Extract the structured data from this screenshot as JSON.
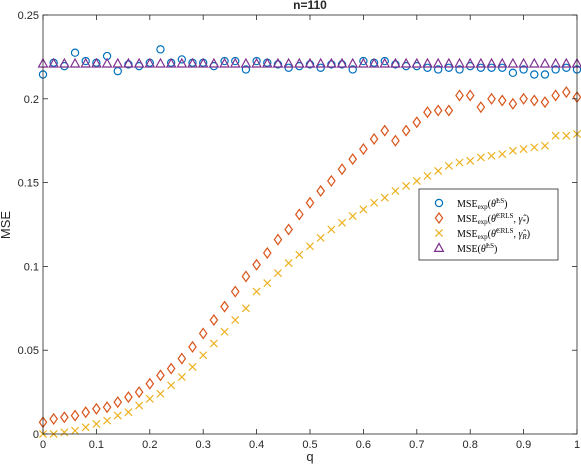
{
  "chart_data": {
    "type": "scatter",
    "title": "n=110",
    "xlabel": "q",
    "ylabel": "MSE",
    "xlim": [
      0,
      1
    ],
    "ylim": [
      0,
      0.25
    ],
    "xticks": [
      0,
      0.1,
      0.2,
      0.3,
      0.4,
      0.5,
      0.6,
      0.7,
      0.8,
      0.9,
      1
    ],
    "yticks": [
      0,
      0.05,
      0.1,
      0.15,
      0.2,
      0.25
    ],
    "xtick_labels": [
      "0",
      "0.1",
      "0.2",
      "0.3",
      "0.4",
      "0.5",
      "0.6",
      "0.7",
      "0.8",
      "0.9",
      "1"
    ],
    "ytick_labels": [
      "0",
      "0.05",
      "0.1",
      "0.15",
      "0.2",
      "0.25"
    ],
    "grid": false,
    "legend_position": "right-middle",
    "x": [
      0,
      0.02,
      0.04,
      0.06,
      0.08,
      0.1,
      0.12,
      0.14,
      0.16,
      0.18,
      0.2,
      0.22,
      0.24,
      0.26,
      0.28,
      0.3,
      0.32,
      0.34,
      0.36,
      0.38,
      0.4,
      0.42,
      0.44,
      0.46,
      0.48,
      0.5,
      0.52,
      0.54,
      0.56,
      0.58,
      0.6,
      0.62,
      0.64,
      0.66,
      0.68,
      0.7,
      0.72,
      0.74,
      0.76,
      0.78,
      0.8,
      0.82,
      0.84,
      0.86,
      0.88,
      0.9,
      0.92,
      0.94,
      0.96,
      0.98,
      1
    ],
    "series": [
      {
        "name": "MSE_exp(θ^LS)",
        "marker": "circle",
        "color": "#0072BD",
        "values": [
          0.2145,
          0.2215,
          0.2195,
          0.2275,
          0.2225,
          0.2215,
          0.2255,
          0.2165,
          0.2205,
          0.2195,
          0.2215,
          0.2295,
          0.2215,
          0.2235,
          0.2215,
          0.2215,
          0.2195,
          0.2225,
          0.2225,
          0.2175,
          0.2225,
          0.2215,
          0.2205,
          0.2185,
          0.2195,
          0.2205,
          0.2185,
          0.2205,
          0.2205,
          0.2175,
          0.2225,
          0.2215,
          0.2225,
          0.2205,
          0.2195,
          0.2195,
          0.2185,
          0.2175,
          0.2185,
          0.2175,
          0.2195,
          0.2185,
          0.2185,
          0.2185,
          0.2155,
          0.2175,
          0.2145,
          0.2145,
          0.2175,
          0.2185,
          0.2175
        ]
      },
      {
        "name": "MSE_exp(θ^CRLS, γ̂*)",
        "marker": "diamond",
        "color": "#D95319",
        "values": [
          0.007,
          0.009,
          0.01,
          0.011,
          0.013,
          0.015,
          0.016,
          0.019,
          0.022,
          0.025,
          0.03,
          0.035,
          0.039,
          0.045,
          0.052,
          0.06,
          0.068,
          0.076,
          0.085,
          0.094,
          0.101,
          0.108,
          0.116,
          0.122,
          0.131,
          0.138,
          0.145,
          0.151,
          0.158,
          0.164,
          0.17,
          0.176,
          0.181,
          0.175,
          0.181,
          0.186,
          0.192,
          0.193,
          0.193,
          0.202,
          0.202,
          0.195,
          0.2,
          0.199,
          0.197,
          0.2,
          0.199,
          0.198,
          0.202,
          0.204,
          0.201
        ]
      },
      {
        "name": "MSE_exp(θ^CRLS, γ̂R)",
        "marker": "x",
        "color": "#EDB120",
        "values": [
          0.0,
          0.0,
          0.001,
          0.002,
          0.004,
          0.006,
          0.008,
          0.011,
          0.013,
          0.017,
          0.021,
          0.024,
          0.029,
          0.034,
          0.04,
          0.047,
          0.054,
          0.061,
          0.068,
          0.075,
          0.085,
          0.09,
          0.096,
          0.102,
          0.107,
          0.112,
          0.117,
          0.122,
          0.126,
          0.13,
          0.134,
          0.138,
          0.141,
          0.145,
          0.148,
          0.151,
          0.154,
          0.157,
          0.16,
          0.162,
          0.163,
          0.165,
          0.166,
          0.167,
          0.169,
          0.17,
          0.171,
          0.172,
          0.178,
          0.178,
          0.179
        ]
      },
      {
        "name": "MSE(θ^LS)",
        "marker": "triangle",
        "color": "#7E2F8E",
        "values": [
          0.221,
          0.221,
          0.221,
          0.221,
          0.221,
          0.221,
          0.221,
          0.221,
          0.221,
          0.221,
          0.221,
          0.221,
          0.221,
          0.221,
          0.221,
          0.221,
          0.221,
          0.221,
          0.221,
          0.221,
          0.221,
          0.221,
          0.221,
          0.221,
          0.221,
          0.221,
          0.221,
          0.221,
          0.221,
          0.221,
          0.221,
          0.221,
          0.221,
          0.221,
          0.221,
          0.221,
          0.221,
          0.221,
          0.221,
          0.221,
          0.221,
          0.221,
          0.221,
          0.221,
          0.221,
          0.221,
          0.221,
          0.221,
          0.221,
          0.221,
          0.221
        ]
      }
    ]
  }
}
